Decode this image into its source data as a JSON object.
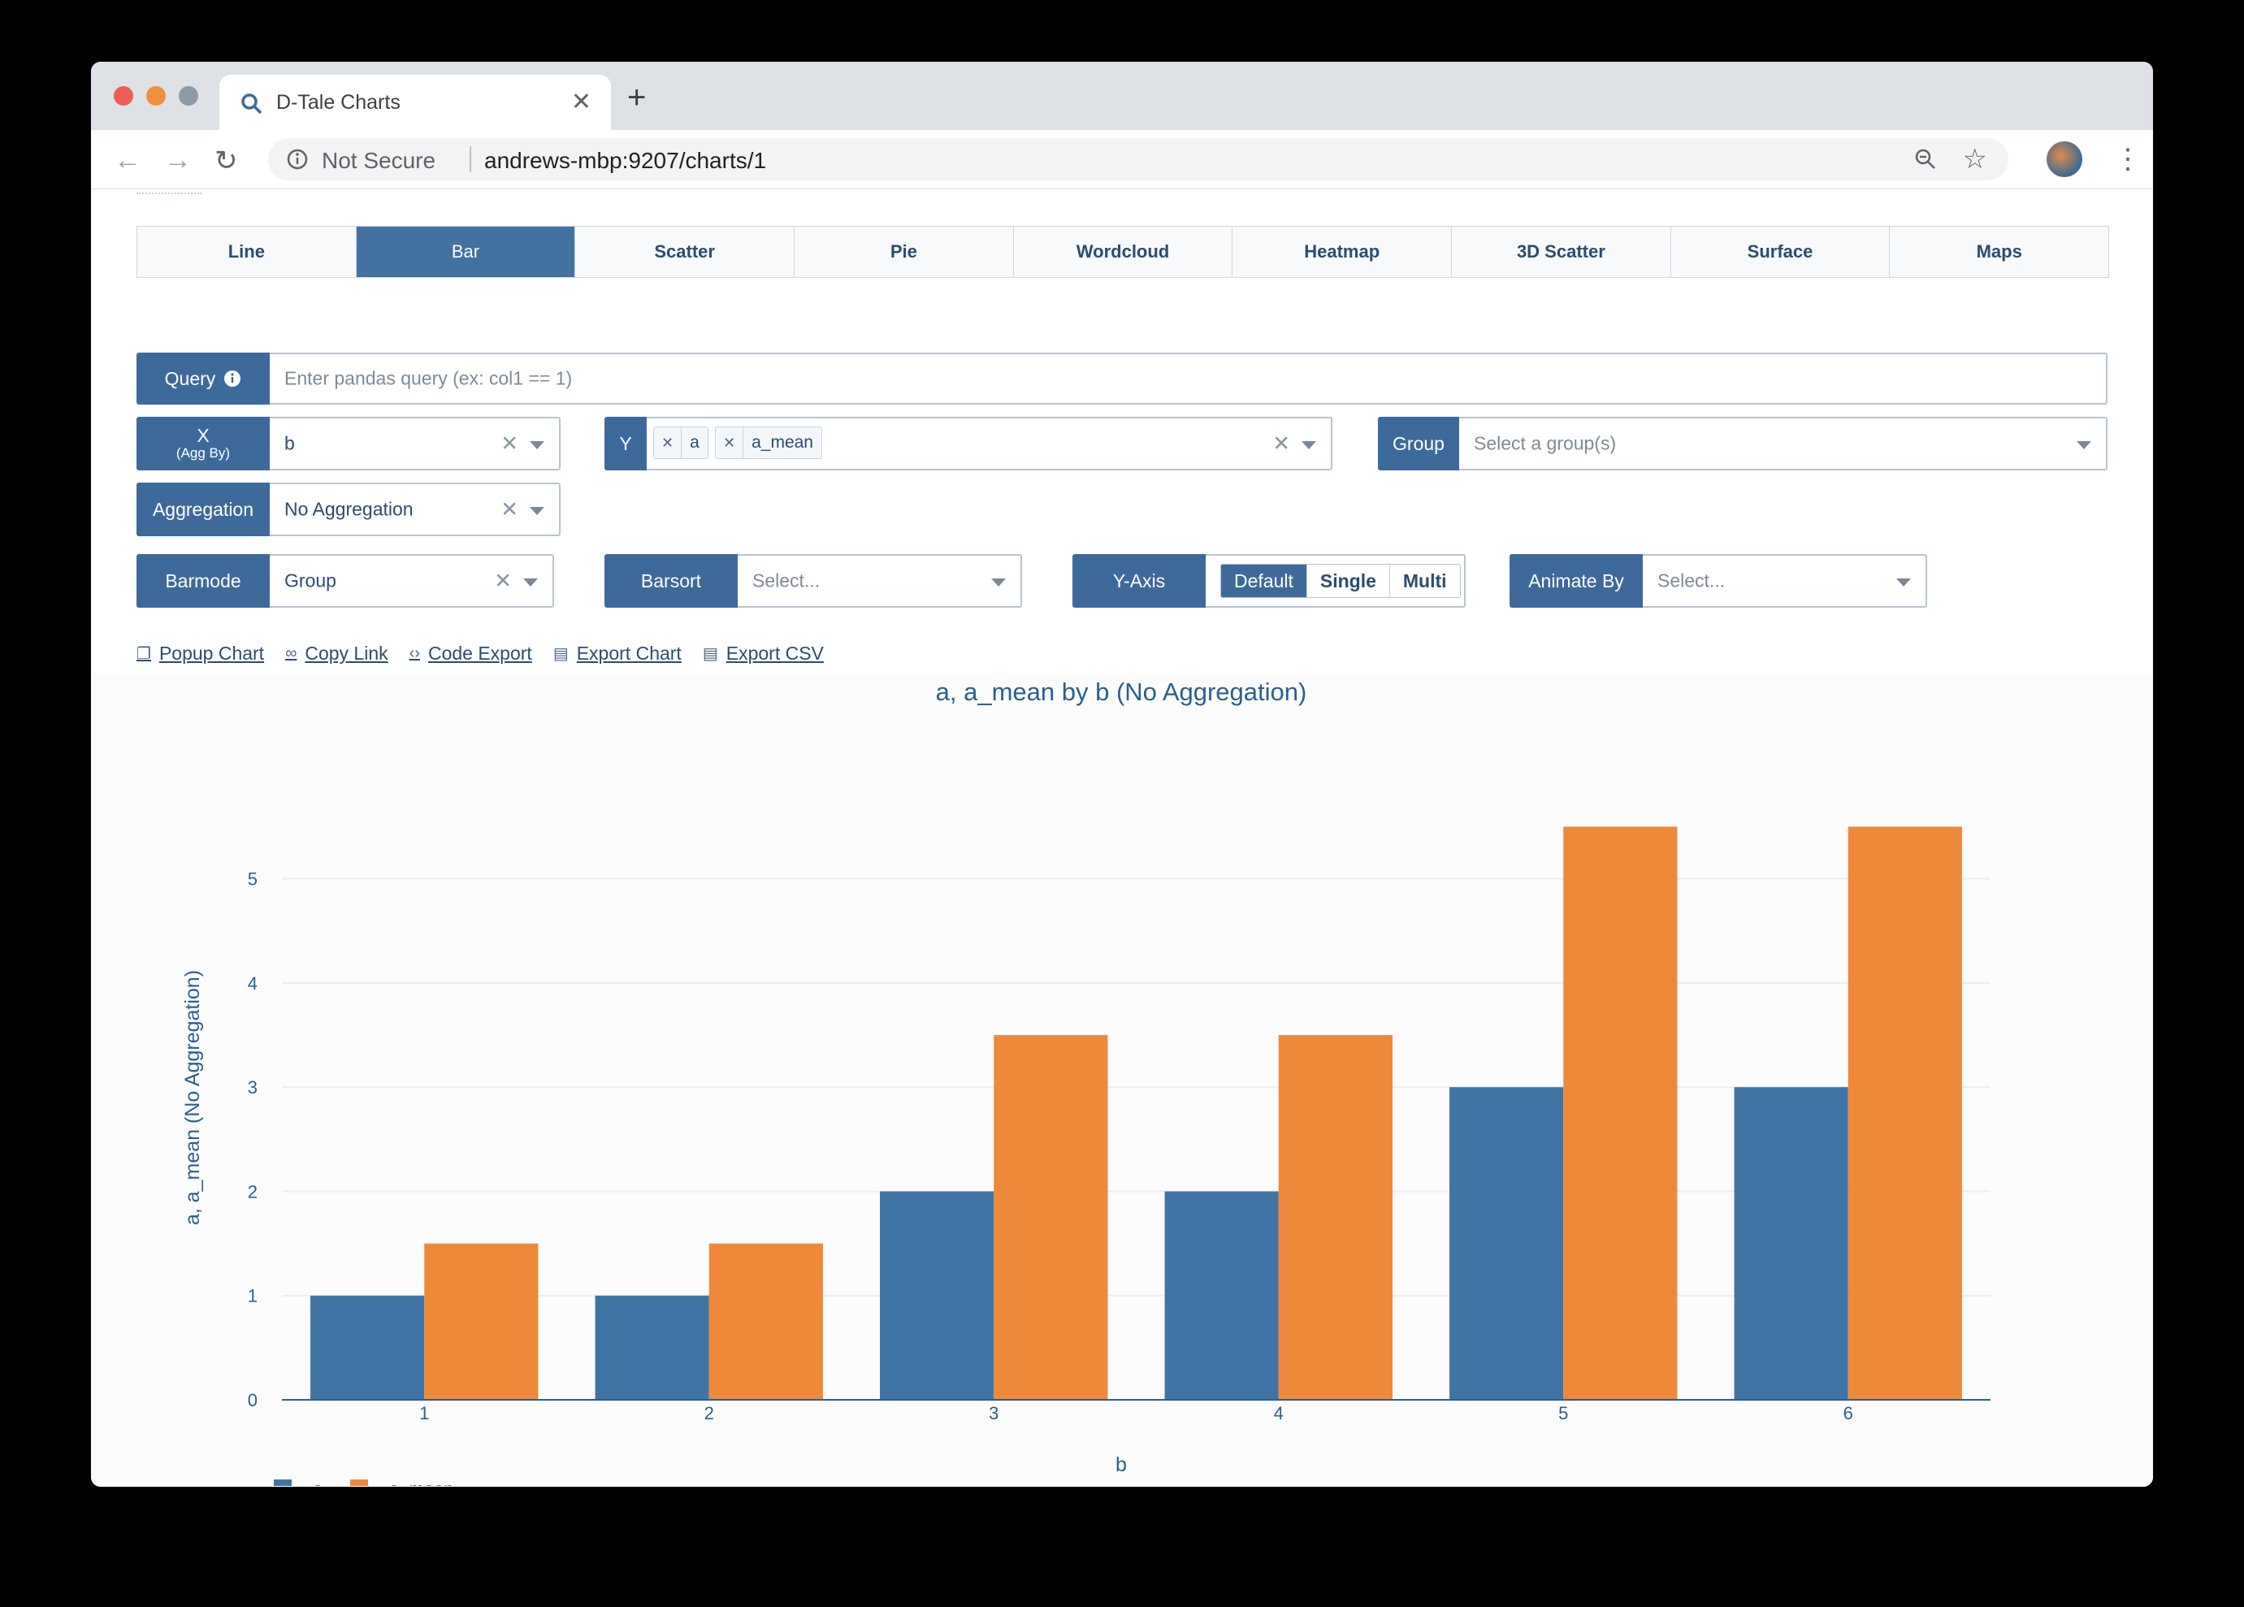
{
  "browser": {
    "tab_title": "D-Tale Charts",
    "not_secure": "Not Secure",
    "url": "andrews-mbp:9207/charts/1"
  },
  "chart_types": [
    "Line",
    "Bar",
    "Scatter",
    "Pie",
    "Wordcloud",
    "Heatmap",
    "3D Scatter",
    "Surface",
    "Maps"
  ],
  "active_chart_type": "Bar",
  "query": {
    "label": "Query",
    "placeholder": "Enter pandas query (ex: col1 == 1)"
  },
  "x_field": {
    "label": "X",
    "sublabel": "(Agg By)",
    "value": "b"
  },
  "y_field": {
    "label": "Y",
    "chips": [
      "a",
      "a_mean"
    ]
  },
  "group_field": {
    "label": "Group",
    "placeholder": "Select a group(s)"
  },
  "aggregation": {
    "label": "Aggregation",
    "value": "No Aggregation"
  },
  "barmode": {
    "label": "Barmode",
    "value": "Group"
  },
  "barsort": {
    "label": "Barsort",
    "placeholder": "Select..."
  },
  "y_axis": {
    "label": "Y-Axis",
    "options": [
      "Default",
      "Single",
      "Multi"
    ],
    "selected": "Default"
  },
  "animate_by": {
    "label": "Animate By",
    "placeholder": "Select..."
  },
  "actions": [
    "Popup Chart",
    "Copy Link",
    "Code Export",
    "Export Chart",
    "Export CSV"
  ],
  "colors": {
    "series_a": "#4074a5",
    "series_a_mean": "#f0883a",
    "accent": "#3d6a9b"
  },
  "chart_data": {
    "type": "bar",
    "title": "a, a_mean by b (No Aggregation)",
    "xlabel": "b",
    "ylabel": "a, a_mean (No Aggregation)",
    "categories": [
      "1",
      "2",
      "3",
      "4",
      "5",
      "6"
    ],
    "series": [
      {
        "name": "a",
        "values": [
          1,
          1,
          2,
          2,
          3,
          3
        ]
      },
      {
        "name": "a_mean",
        "values": [
          1.5,
          1.5,
          3.5,
          3.5,
          5.5,
          5.5
        ]
      }
    ],
    "ylim": [
      0,
      5.8
    ],
    "yticks": [
      "0",
      "1",
      "2",
      "3",
      "4",
      "5"
    ],
    "grid": true,
    "legend_position": "bottom-left"
  }
}
